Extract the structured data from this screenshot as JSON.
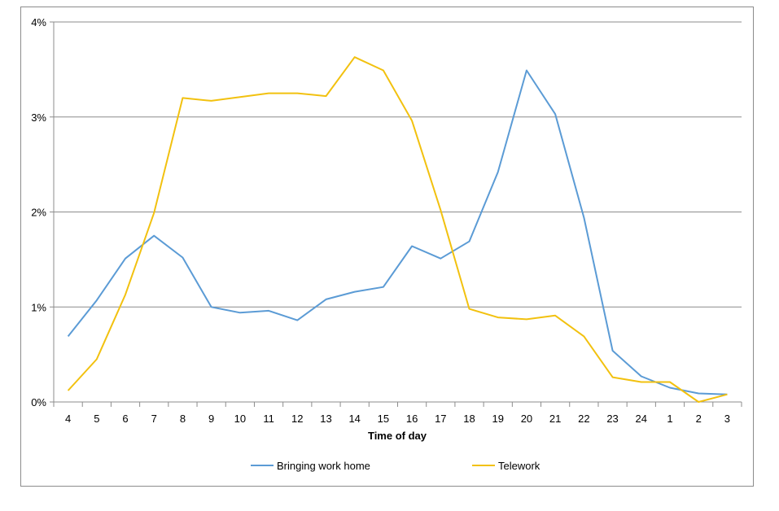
{
  "chart_data": {
    "type": "line",
    "title": "",
    "xlabel": "Time of day",
    "ylabel": "",
    "categories": [
      "4",
      "5",
      "6",
      "7",
      "8",
      "9",
      "10",
      "11",
      "12",
      "13",
      "14",
      "15",
      "16",
      "17",
      "18",
      "19",
      "20",
      "21",
      "22",
      "23",
      "24",
      "1",
      "2",
      "3"
    ],
    "ylim": [
      0,
      4
    ],
    "yticks": [
      0,
      1,
      2,
      3,
      4
    ],
    "ytick_labels": [
      "0%",
      "1%",
      "2%",
      "3%",
      "4%"
    ],
    "grid": true,
    "legend_position": "bottom",
    "series": [
      {
        "name": "Bringing work home",
        "color": "#5B9BD5",
        "values": [
          0.69,
          1.07,
          1.51,
          1.75,
          1.52,
          1.0,
          0.94,
          0.96,
          0.86,
          1.08,
          1.16,
          1.21,
          1.64,
          1.51,
          1.69,
          2.42,
          3.49,
          3.03,
          1.94,
          0.54,
          0.27,
          0.15,
          0.09,
          0.08
        ]
      },
      {
        "name": "Telework",
        "color": "#F2C10F",
        "values": [
          0.12,
          0.45,
          1.13,
          1.99,
          3.2,
          3.17,
          3.21,
          3.25,
          3.25,
          3.22,
          3.63,
          3.49,
          2.96,
          2.02,
          0.98,
          0.89,
          0.87,
          0.91,
          0.69,
          0.26,
          0.21,
          0.21,
          0.0,
          0.08
        ]
      }
    ]
  }
}
